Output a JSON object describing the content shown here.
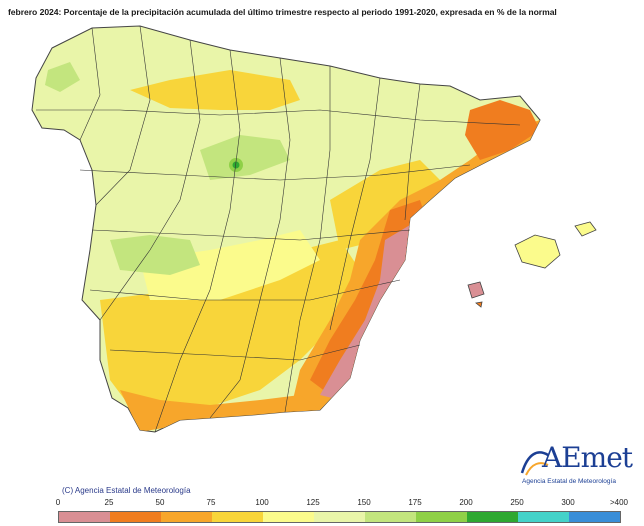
{
  "title": "febrero 2024: Porcentaje de la precipitación acumulada del último trimestre respecto al periodo 1991-2020, expresada en % de la normal",
  "copyright": "(C) Agencia Estatal de Meteorología",
  "logo": {
    "text": "AEmet",
    "subtitle": "Agencia Estatal de Meteorología"
  },
  "legend": {
    "labels": [
      "0",
      "25",
      "50",
      "75",
      "100",
      "125",
      "150",
      "175",
      "200",
      "250",
      "300",
      ">400"
    ],
    "colors": [
      "#d98f94",
      "#f07d1f",
      "#f7a62b",
      "#f8d53a",
      "#fbfb8c",
      "#e9f5a9",
      "#c3e57e",
      "#8fd047",
      "#2ea831",
      "#44d2c9",
      "#3a8ed8",
      "#1c1ec8"
    ]
  },
  "map_colors": {
    "ocean": "#ffffff",
    "land_base": "#e9f5a9",
    "province_border": "#333333"
  }
}
